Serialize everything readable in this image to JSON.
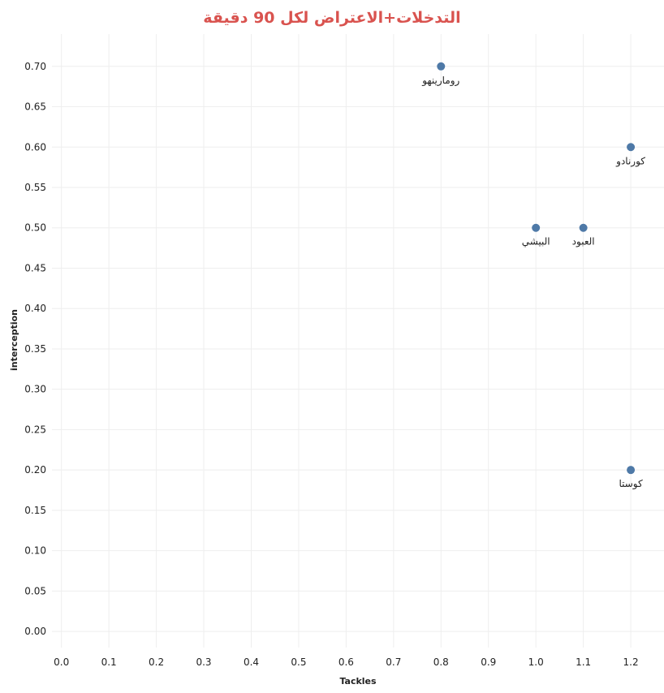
{
  "chart_data": {
    "type": "scatter",
    "title": "التدخلات+الاعتراض لكل 90 دقيقة",
    "xlabel": "Tackles",
    "ylabel": "interception",
    "xlim": [
      -0.02,
      1.27
    ],
    "ylim": [
      -0.02,
      0.74
    ],
    "x_ticks": [
      "0.0",
      "0.1",
      "0.2",
      "0.3",
      "0.4",
      "0.5",
      "0.6",
      "0.7",
      "0.8",
      "0.9",
      "1.0",
      "1.1",
      "1.2"
    ],
    "y_ticks": [
      "0.00",
      "0.05",
      "0.10",
      "0.15",
      "0.20",
      "0.25",
      "0.30",
      "0.35",
      "0.40",
      "0.45",
      "0.50",
      "0.55",
      "0.60",
      "0.65",
      "0.70"
    ],
    "grid": true,
    "marker_color": "#4e79a7",
    "title_color": "#d9534f",
    "points": [
      {
        "x": 0.8,
        "y": 0.7,
        "label": "رومارينهو"
      },
      {
        "x": 1.2,
        "y": 0.6,
        "label": "كورنادو"
      },
      {
        "x": 1.0,
        "y": 0.5,
        "label": "البيشي"
      },
      {
        "x": 1.1,
        "y": 0.5,
        "label": "العبود"
      },
      {
        "x": 1.2,
        "y": 0.2,
        "label": "كوستا"
      }
    ]
  }
}
